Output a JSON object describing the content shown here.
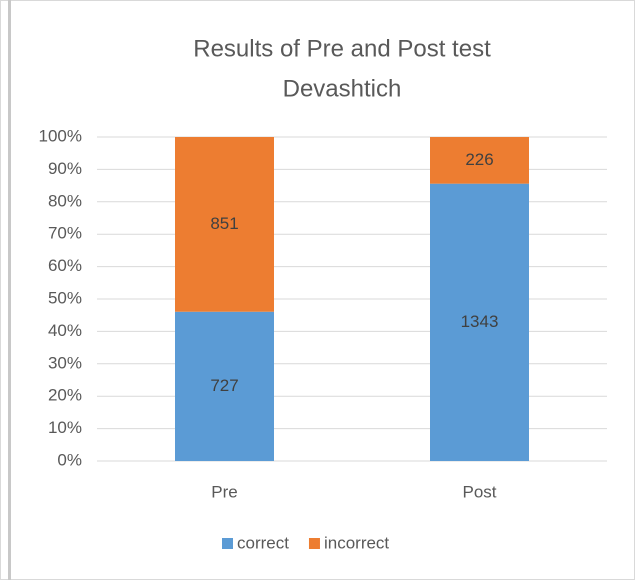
{
  "chart_data": {
    "type": "bar",
    "stacking": "percent",
    "title": [
      "Results of Pre and Post test",
      "Devashtich"
    ],
    "categories": [
      "Pre",
      "Post"
    ],
    "series": [
      {
        "name": "correct",
        "color": "#5b9bd5",
        "values": [
          727,
          1343
        ]
      },
      {
        "name": "incorrect",
        "color": "#ed7d31",
        "values": [
          851,
          226
        ]
      }
    ],
    "ylim": [
      0,
      100
    ],
    "yticks": [
      {
        "value": 0,
        "label": "0%"
      },
      {
        "value": 10,
        "label": "10%"
      },
      {
        "value": 20,
        "label": "20%"
      },
      {
        "value": 30,
        "label": "30%"
      },
      {
        "value": 40,
        "label": "40%"
      },
      {
        "value": 50,
        "label": "50%"
      },
      {
        "value": 60,
        "label": "60%"
      },
      {
        "value": 70,
        "label": "70%"
      },
      {
        "value": 80,
        "label": "80%"
      },
      {
        "value": 90,
        "label": "90%"
      },
      {
        "value": 100,
        "label": "100%"
      }
    ],
    "grid": true,
    "legend": "bottom"
  }
}
